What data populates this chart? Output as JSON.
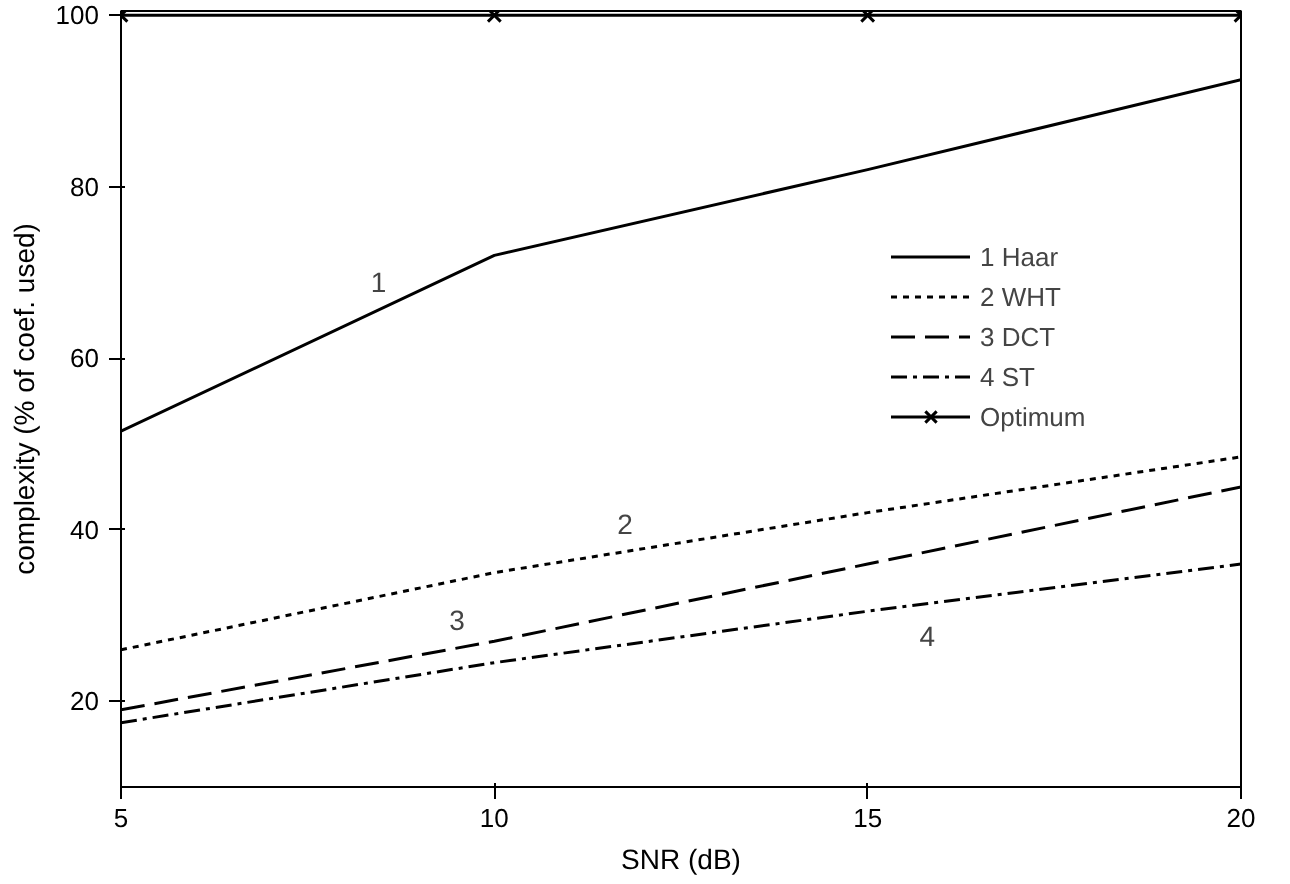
{
  "chart_data": {
    "type": "line",
    "xlabel": "SNR (dB)",
    "ylabel": "complexity (% of coef. used)",
    "x": [
      5,
      10,
      15,
      20
    ],
    "xlim": [
      5,
      20
    ],
    "ylim": [
      10,
      100.5
    ],
    "xticks": [
      5,
      10,
      15,
      20
    ],
    "yticks": [
      20,
      40,
      60,
      80,
      100
    ],
    "grid": false,
    "legend": "right",
    "marker": "none",
    "series": [
      {
        "name": "1 Haar",
        "color": "#000000",
        "line_style": "solid",
        "values": [
          51.5,
          72,
          82,
          92.5
        ]
      },
      {
        "name": "2 WHT",
        "color": "#000000",
        "line_style": "dotted",
        "values": [
          26,
          35,
          42,
          48.5
        ]
      },
      {
        "name": "3 DCT",
        "color": "#000000",
        "line_style": "dashed",
        "values": [
          19,
          27,
          36,
          45
        ]
      },
      {
        "name": "4 ST",
        "color": "#000000",
        "line_style": "dashdot",
        "values": [
          17.5,
          24.5,
          30.5,
          36
        ]
      },
      {
        "name": "Optimum",
        "color": "#000000",
        "line_style": "solid",
        "marker": "cross",
        "values": [
          100,
          100,
          100,
          100
        ]
      }
    ],
    "annotations": [
      "1",
      "2",
      "3",
      "4"
    ]
  }
}
